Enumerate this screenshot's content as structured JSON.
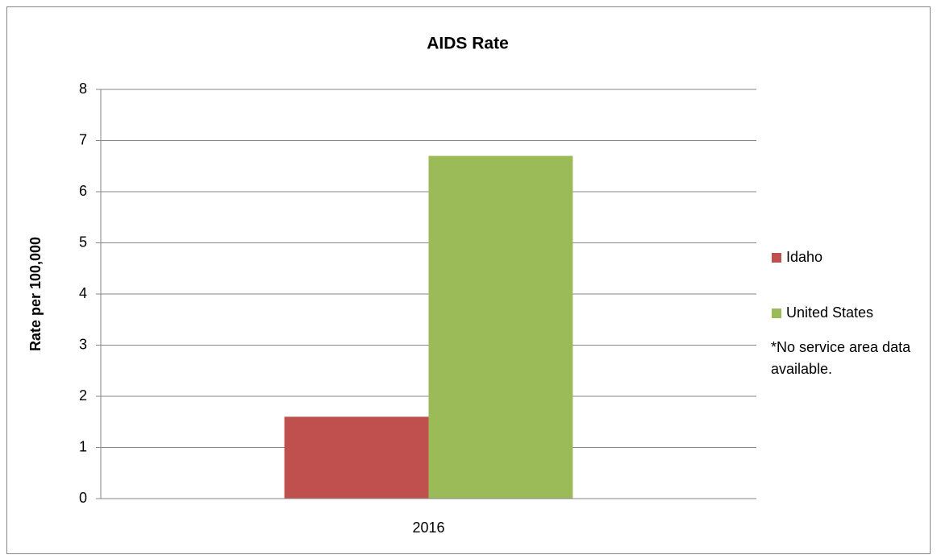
{
  "chart_data": {
    "type": "bar",
    "title": "AIDS Rate",
    "y_label": "Rate per 100,000",
    "categories": [
      "2016"
    ],
    "series": [
      {
        "name": "Idaho",
        "color": "#c0504d",
        "values": [
          1.6
        ]
      },
      {
        "name": "United States",
        "color": "#9bbb59",
        "values": [
          6.7
        ]
      }
    ],
    "ylim": [
      0,
      8
    ],
    "yticks": [
      0,
      1,
      2,
      3,
      4,
      5,
      6,
      7,
      8
    ],
    "grid": true,
    "legend": "right",
    "annotation": "*No service area data available."
  }
}
